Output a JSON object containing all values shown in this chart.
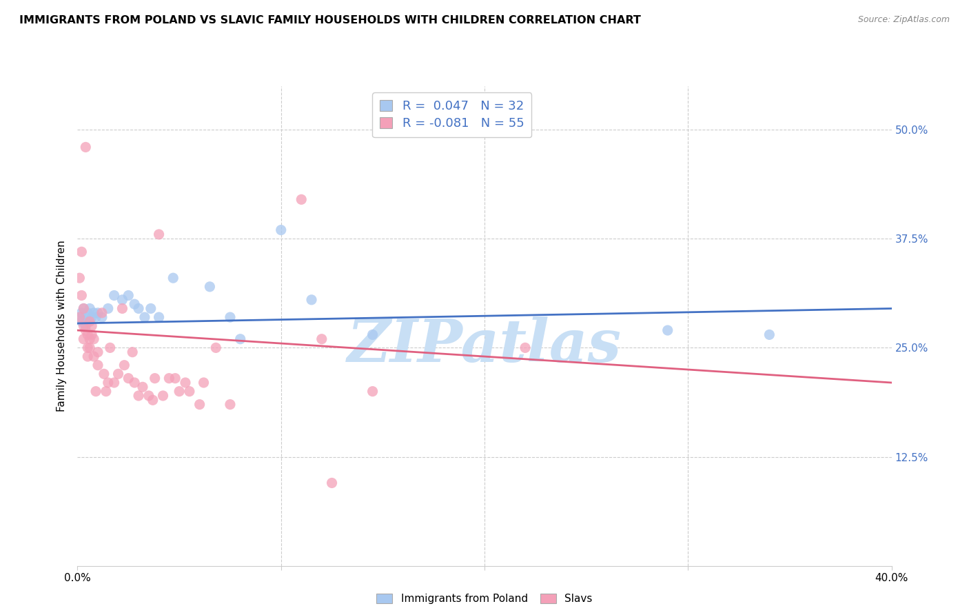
{
  "title": "IMMIGRANTS FROM POLAND VS SLAVIC FAMILY HOUSEHOLDS WITH CHILDREN CORRELATION CHART",
  "source": "Source: ZipAtlas.com",
  "ylabel_label": "Family Households with Children",
  "legend_line1": "R =  0.047   N = 32",
  "legend_line2": "R = -0.081   N = 55",
  "legend_labels_bottom": [
    "Immigrants from Poland",
    "Slavs"
  ],
  "blue_color": "#a8c8f0",
  "pink_color": "#f4a0b8",
  "trend_blue": "#4472c4",
  "trend_pink": "#e06080",
  "blue_scatter": [
    [
      0.001,
      0.285
    ],
    [
      0.002,
      0.29
    ],
    [
      0.002,
      0.28
    ],
    [
      0.003,
      0.295
    ],
    [
      0.004,
      0.285
    ],
    [
      0.004,
      0.275
    ],
    [
      0.005,
      0.29
    ],
    [
      0.005,
      0.28
    ],
    [
      0.006,
      0.295
    ],
    [
      0.007,
      0.285
    ],
    [
      0.008,
      0.29
    ],
    [
      0.009,
      0.285
    ],
    [
      0.01,
      0.29
    ],
    [
      0.012,
      0.285
    ],
    [
      0.015,
      0.295
    ],
    [
      0.018,
      0.31
    ],
    [
      0.022,
      0.305
    ],
    [
      0.025,
      0.31
    ],
    [
      0.028,
      0.3
    ],
    [
      0.03,
      0.295
    ],
    [
      0.033,
      0.285
    ],
    [
      0.036,
      0.295
    ],
    [
      0.04,
      0.285
    ],
    [
      0.047,
      0.33
    ],
    [
      0.065,
      0.32
    ],
    [
      0.075,
      0.285
    ],
    [
      0.08,
      0.26
    ],
    [
      0.1,
      0.385
    ],
    [
      0.115,
      0.305
    ],
    [
      0.145,
      0.265
    ],
    [
      0.29,
      0.27
    ],
    [
      0.34,
      0.265
    ]
  ],
  "pink_scatter": [
    [
      0.001,
      0.285
    ],
    [
      0.001,
      0.33
    ],
    [
      0.002,
      0.36
    ],
    [
      0.002,
      0.31
    ],
    [
      0.003,
      0.295
    ],
    [
      0.003,
      0.275
    ],
    [
      0.003,
      0.26
    ],
    [
      0.004,
      0.48
    ],
    [
      0.004,
      0.27
    ],
    [
      0.005,
      0.265
    ],
    [
      0.005,
      0.24
    ],
    [
      0.005,
      0.25
    ],
    [
      0.006,
      0.28
    ],
    [
      0.006,
      0.26
    ],
    [
      0.006,
      0.25
    ],
    [
      0.007,
      0.275
    ],
    [
      0.007,
      0.265
    ],
    [
      0.008,
      0.26
    ],
    [
      0.008,
      0.24
    ],
    [
      0.009,
      0.2
    ],
    [
      0.01,
      0.23
    ],
    [
      0.01,
      0.245
    ],
    [
      0.012,
      0.29
    ],
    [
      0.013,
      0.22
    ],
    [
      0.014,
      0.2
    ],
    [
      0.015,
      0.21
    ],
    [
      0.016,
      0.25
    ],
    [
      0.018,
      0.21
    ],
    [
      0.02,
      0.22
    ],
    [
      0.022,
      0.295
    ],
    [
      0.023,
      0.23
    ],
    [
      0.025,
      0.215
    ],
    [
      0.027,
      0.245
    ],
    [
      0.028,
      0.21
    ],
    [
      0.03,
      0.195
    ],
    [
      0.032,
      0.205
    ],
    [
      0.035,
      0.195
    ],
    [
      0.037,
      0.19
    ],
    [
      0.038,
      0.215
    ],
    [
      0.04,
      0.38
    ],
    [
      0.042,
      0.195
    ],
    [
      0.045,
      0.215
    ],
    [
      0.048,
      0.215
    ],
    [
      0.05,
      0.2
    ],
    [
      0.053,
      0.21
    ],
    [
      0.055,
      0.2
    ],
    [
      0.06,
      0.185
    ],
    [
      0.062,
      0.21
    ],
    [
      0.068,
      0.25
    ],
    [
      0.075,
      0.185
    ],
    [
      0.11,
      0.42
    ],
    [
      0.12,
      0.26
    ],
    [
      0.125,
      0.095
    ],
    [
      0.145,
      0.2
    ],
    [
      0.22,
      0.25
    ]
  ],
  "x_min": 0.0,
  "x_max": 0.4,
  "y_min": 0.0,
  "y_max": 0.55,
  "blue_trend_x": [
    0.0,
    0.4
  ],
  "blue_trend_y": [
    0.278,
    0.295
  ],
  "pink_trend_x": [
    0.0,
    0.4
  ],
  "pink_trend_y": [
    0.27,
    0.21
  ],
  "watermark": "ZIPatlas",
  "watermark_color": "#c8dff5",
  "grid_color": "#cccccc",
  "ytick_color": "#4472c4",
  "y_ticks": [
    0.125,
    0.25,
    0.375,
    0.5
  ],
  "y_tick_labels": [
    "12.5%",
    "25.0%",
    "37.5%",
    "50.0%"
  ],
  "x_ticks": [
    0.0,
    0.1,
    0.2,
    0.3,
    0.4
  ],
  "title_fontsize": 11.5,
  "source_fontsize": 9,
  "scatter_size": 120
}
